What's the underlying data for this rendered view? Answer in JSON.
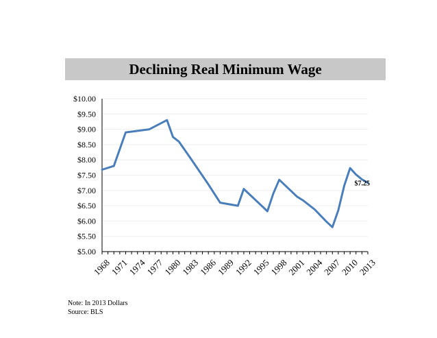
{
  "chart_data": {
    "type": "line",
    "title": "Declining Real Minimum Wage",
    "xlabel": "",
    "ylabel": "",
    "ylim": [
      5.0,
      10.0
    ],
    "y_ticks": [
      "$5.00",
      "$5.50",
      "$6.00",
      "$6.50",
      "$7.00",
      "$7.50",
      "$8.00",
      "$8.50",
      "$9.00",
      "$9.50",
      "$10.00"
    ],
    "x_ticks": [
      "1968",
      "1971",
      "1974",
      "1977",
      "1980",
      "1983",
      "1986",
      "1989",
      "1992",
      "1995",
      "1998",
      "2001",
      "2004",
      "2007",
      "2010",
      "2013"
    ],
    "xlim": [
      1968,
      2013
    ],
    "grid": true,
    "series_color": "#4a7ebb",
    "series": [
      {
        "x": [
          1968,
          1970,
          1972,
          1976,
          1979,
          1980,
          1981,
          1983,
          1986,
          1988,
          1991,
          1992,
          1996,
          1997,
          1998,
          2001,
          2002,
          2004,
          2006,
          2007,
          2008,
          2009,
          2010,
          2011,
          2012,
          2013
        ],
        "values": [
          7.68,
          7.8,
          8.9,
          9.0,
          9.3,
          8.75,
          8.6,
          8.05,
          7.2,
          6.6,
          6.5,
          7.05,
          6.32,
          6.9,
          7.35,
          6.8,
          6.68,
          6.38,
          5.98,
          5.8,
          6.35,
          7.15,
          7.73,
          7.52,
          7.36,
          7.25
        ]
      }
    ],
    "annotations": [
      "$7.25"
    ]
  },
  "notes": {
    "line1": "Note: In 2013 Dollars",
    "line2": "Source: BLS"
  }
}
